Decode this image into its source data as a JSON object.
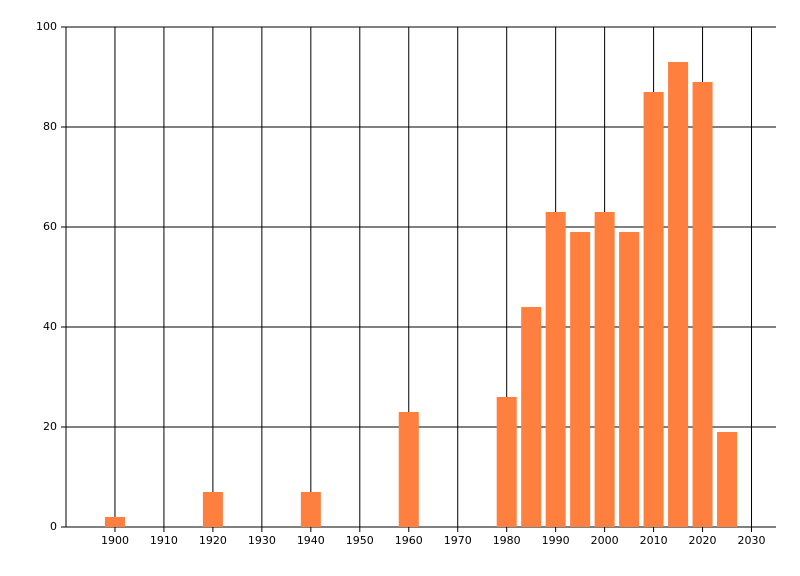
{
  "chart_data": {
    "type": "bar",
    "x": [
      1900,
      1920,
      1940,
      1960,
      1980,
      1985,
      1990,
      1995,
      2000,
      2005,
      2010,
      2015,
      2020,
      2025
    ],
    "values": [
      2,
      7,
      7,
      23,
      26,
      44,
      63,
      59,
      63,
      59,
      87,
      93,
      89,
      19
    ],
    "color": "#ff7f3f",
    "xlim": [
      1890,
      2035
    ],
    "xticks": [
      1900,
      1910,
      1920,
      1930,
      1940,
      1950,
      1960,
      1970,
      1980,
      1990,
      2000,
      2010,
      2020,
      2030
    ],
    "ylim": [
      0,
      100
    ],
    "yticks": [
      0,
      20,
      40,
      60,
      80,
      100
    ],
    "grid": true
  }
}
